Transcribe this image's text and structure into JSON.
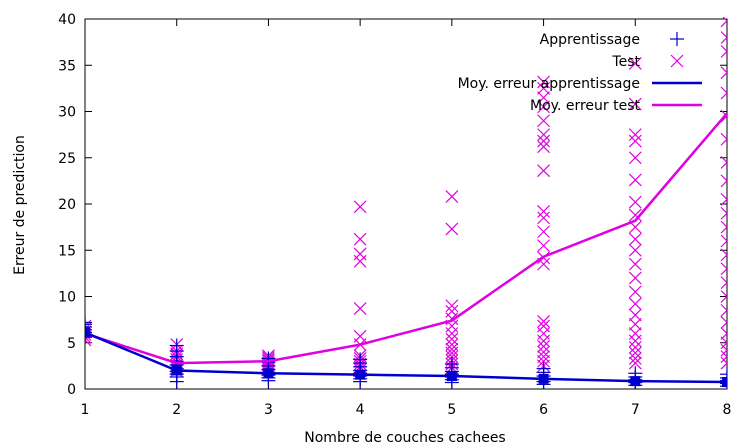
{
  "chart_data": {
    "type": "scatter",
    "xlabel": "Nombre de couches cachees",
    "ylabel": "Erreur de prediction",
    "xlim": [
      1,
      8
    ],
    "ylim": [
      0,
      40
    ],
    "x_ticks": [
      "1",
      "2",
      "3",
      "4",
      "5",
      "6",
      "7",
      "8"
    ],
    "y_ticks": [
      "0",
      "5",
      "10",
      "15",
      "20",
      "25",
      "30",
      "35",
      "40"
    ],
    "grid": false,
    "legend_position": "top-right",
    "series": [
      {
        "name": "Apprentissage",
        "kind": "plus",
        "color": "#0000cc",
        "points": [
          [
            1,
            5.6
          ],
          [
            1,
            5.9
          ],
          [
            1,
            6.1
          ],
          [
            1,
            6.4
          ],
          [
            1,
            6.7
          ],
          [
            1,
            7.0
          ],
          [
            1,
            7.2
          ],
          [
            2,
            0.8
          ],
          [
            2,
            1.3
          ],
          [
            2,
            1.6
          ],
          [
            2,
            1.9
          ],
          [
            2,
            2.2
          ],
          [
            2,
            2.6
          ],
          [
            2,
            3.0
          ],
          [
            2,
            3.5
          ],
          [
            2,
            4.1
          ],
          [
            2,
            4.7
          ],
          [
            3,
            0.9
          ],
          [
            3,
            1.2
          ],
          [
            3,
            1.5
          ],
          [
            3,
            1.8
          ],
          [
            3,
            2.1
          ],
          [
            3,
            2.5
          ],
          [
            3,
            2.9
          ],
          [
            3,
            3.3
          ],
          [
            4,
            0.8
          ],
          [
            4,
            1.1
          ],
          [
            4,
            1.4
          ],
          [
            4,
            1.7
          ],
          [
            4,
            2.0
          ],
          [
            4,
            2.4
          ],
          [
            4,
            2.8
          ],
          [
            4,
            3.2
          ],
          [
            5,
            0.7
          ],
          [
            5,
            1.0
          ],
          [
            5,
            1.3
          ],
          [
            5,
            1.6
          ],
          [
            5,
            1.9
          ],
          [
            5,
            2.3
          ],
          [
            5,
            2.7
          ],
          [
            6,
            0.5
          ],
          [
            6,
            0.8
          ],
          [
            6,
            1.1
          ],
          [
            6,
            1.4
          ],
          [
            6,
            1.8
          ],
          [
            6,
            2.2
          ],
          [
            7,
            0.4
          ],
          [
            7,
            0.7
          ],
          [
            7,
            1.0
          ],
          [
            7,
            1.3
          ],
          [
            7,
            1.7
          ],
          [
            8,
            0.3
          ],
          [
            8,
            0.6
          ],
          [
            8,
            0.9
          ],
          [
            8,
            1.2
          ],
          [
            8,
            1.6
          ]
        ]
      },
      {
        "name": "Test",
        "kind": "cross",
        "color": "#e000e0",
        "points": [
          [
            1,
            5.3
          ],
          [
            1,
            5.6
          ],
          [
            1,
            5.9
          ],
          [
            1,
            6.2
          ],
          [
            1,
            6.5
          ],
          [
            1,
            6.8
          ],
          [
            2,
            2.0
          ],
          [
            2,
            2.3
          ],
          [
            2,
            2.6
          ],
          [
            2,
            2.9
          ],
          [
            2,
            3.2
          ],
          [
            2,
            3.5
          ],
          [
            2,
            3.8
          ],
          [
            2,
            4.1
          ],
          [
            2,
            4.8
          ],
          [
            3,
            2.2
          ],
          [
            3,
            2.4
          ],
          [
            3,
            2.6
          ],
          [
            3,
            2.8
          ],
          [
            3,
            3.0
          ],
          [
            3,
            3.2
          ],
          [
            3,
            3.4
          ],
          [
            3,
            3.6
          ],
          [
            4,
            2.1
          ],
          [
            4,
            2.4
          ],
          [
            4,
            2.7
          ],
          [
            4,
            3.0
          ],
          [
            4,
            3.3
          ],
          [
            4,
            3.6
          ],
          [
            4,
            4.8
          ],
          [
            4,
            5.7
          ],
          [
            4,
            8.7
          ],
          [
            4,
            13.8
          ],
          [
            4,
            14.6
          ],
          [
            4,
            16.2
          ],
          [
            4,
            19.7
          ],
          [
            5,
            2.3
          ],
          [
            5,
            2.7
          ],
          [
            5,
            3.1
          ],
          [
            5,
            3.5
          ],
          [
            5,
            3.9
          ],
          [
            5,
            4.3
          ],
          [
            5,
            4.8
          ],
          [
            5,
            5.4
          ],
          [
            5,
            6.0
          ],
          [
            5,
            6.8
          ],
          [
            5,
            7.6
          ],
          [
            5,
            8.4
          ],
          [
            5,
            9.0
          ],
          [
            5,
            17.3
          ],
          [
            5,
            20.8
          ],
          [
            6,
            2.5
          ],
          [
            6,
            3.0
          ],
          [
            6,
            3.5
          ],
          [
            6,
            4.0
          ],
          [
            6,
            4.6
          ],
          [
            6,
            5.2
          ],
          [
            6,
            6.0
          ],
          [
            6,
            6.8
          ],
          [
            6,
            7.3
          ],
          [
            6,
            13.5
          ],
          [
            6,
            14.2
          ],
          [
            6,
            15.5
          ],
          [
            6,
            17.0
          ],
          [
            6,
            18.5
          ],
          [
            6,
            19.2
          ],
          [
            6,
            23.6
          ],
          [
            6,
            26.2
          ],
          [
            6,
            26.8
          ],
          [
            6,
            27.5
          ],
          [
            6,
            29.0
          ],
          [
            6,
            30.5
          ],
          [
            6,
            31.5
          ],
          [
            6,
            32.5
          ],
          [
            6,
            33.2
          ],
          [
            7,
            2.8
          ],
          [
            7,
            3.3
          ],
          [
            7,
            3.9
          ],
          [
            7,
            4.5
          ],
          [
            7,
            5.2
          ],
          [
            7,
            6.0
          ],
          [
            7,
            7.0
          ],
          [
            7,
            8.0
          ],
          [
            7,
            9.2
          ],
          [
            7,
            10.5
          ],
          [
            7,
            12.0
          ],
          [
            7,
            13.5
          ],
          [
            7,
            15.0
          ],
          [
            7,
            16.2
          ],
          [
            7,
            17.5
          ],
          [
            7,
            18.8
          ],
          [
            7,
            20.2
          ],
          [
            7,
            22.6
          ],
          [
            7,
            25.0
          ],
          [
            7,
            26.8
          ],
          [
            7,
            27.5
          ],
          [
            7,
            30.8
          ],
          [
            7,
            35.2
          ],
          [
            8,
            2.8
          ],
          [
            8,
            3.5
          ],
          [
            8,
            4.2
          ],
          [
            8,
            5.0
          ],
          [
            8,
            6.0
          ],
          [
            8,
            7.2
          ],
          [
            8,
            8.5
          ],
          [
            8,
            10.0
          ],
          [
            8,
            11.5
          ],
          [
            8,
            13.0
          ],
          [
            8,
            14.5
          ],
          [
            8,
            16.0
          ],
          [
            8,
            17.5
          ],
          [
            8,
            19.0
          ],
          [
            8,
            20.5
          ],
          [
            8,
            22.5
          ],
          [
            8,
            24.5
          ],
          [
            8,
            27.0
          ],
          [
            8,
            29.5
          ],
          [
            8,
            32.0
          ],
          [
            8,
            34.2
          ],
          [
            8,
            36.5
          ],
          [
            8,
            38.0
          ],
          [
            8,
            39.8
          ]
        ]
      },
      {
        "name": "Moy. erreur apprentissage",
        "kind": "line",
        "color": "#0000cc",
        "points": [
          [
            1,
            6.1
          ],
          [
            2,
            2.0
          ],
          [
            3,
            1.7
          ],
          [
            4,
            1.55
          ],
          [
            5,
            1.4
          ],
          [
            6,
            1.1
          ],
          [
            7,
            0.85
          ],
          [
            8,
            0.75
          ]
        ]
      },
      {
        "name": "Moy. erreur test",
        "kind": "line",
        "color": "#e000e0",
        "points": [
          [
            1,
            6.0
          ],
          [
            2,
            2.8
          ],
          [
            3,
            3.0
          ],
          [
            4,
            4.8
          ],
          [
            5,
            7.4
          ],
          [
            6,
            14.3
          ],
          [
            7,
            18.2
          ],
          [
            8,
            29.8
          ]
        ]
      }
    ]
  }
}
